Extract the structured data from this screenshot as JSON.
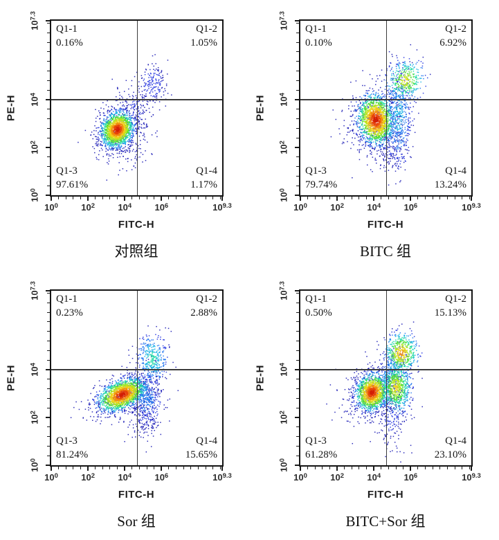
{
  "colors": {
    "background": "#ffffff",
    "axis": "#1a1a1a",
    "quadrant_line": "#3a3a3a",
    "label_text": "#141414",
    "tick_text": "#2e2e2e"
  },
  "chart_data": {
    "type": "scatter",
    "subtype": "flow-cytometry-density-quadrant",
    "xlabel": "FITC-H",
    "ylabel": "PE-H",
    "x_scale": "log10",
    "y_scale": "log10",
    "xlim_log10": [
      0,
      9.3
    ],
    "ylim_log10": [
      0,
      7.3
    ],
    "tick_base": "10",
    "x_tick_exponents": [
      "0",
      "2",
      "4",
      "6",
      "9.3"
    ],
    "y_tick_exponents": [
      "0",
      "2",
      "4",
      "7.3"
    ],
    "quadrant_divider_x_log10": 4.68,
    "quadrant_divider_y_log10": 4.0,
    "grid": "off",
    "legend": "none",
    "colormap": [
      "#1616b4",
      "#2334e0",
      "#1f74f0",
      "#19b4e6",
      "#1ed9a4",
      "#51e034",
      "#b4e61e",
      "#f0d014",
      "#f28c10",
      "#e8450a",
      "#d41f06"
    ],
    "panels": [
      {
        "title": "对照组",
        "quadrants": {
          "q1": {
            "label": "Q1-1",
            "value": "0.16%"
          },
          "q2": {
            "label": "Q1-2",
            "value": "1.05%"
          },
          "q3": {
            "label": "Q1-3",
            "value": "97.61%"
          },
          "q4": {
            "label": "Q1-4",
            "value": "1.17%"
          }
        },
        "clusters": [
          {
            "cx": 3.6,
            "cy": 2.75,
            "sx": 0.42,
            "sy": 0.33,
            "rot": 22,
            "n": 1600,
            "hot": 1.0
          },
          {
            "cx": 3.7,
            "cy": 2.7,
            "sx": 0.75,
            "sy": 0.55,
            "rot": 18,
            "n": 380,
            "hot": 0.15
          },
          {
            "cx": 4.6,
            "cy": 3.6,
            "sx": 0.45,
            "sy": 0.6,
            "rot": 35,
            "n": 130,
            "hot": 0.12
          },
          {
            "cx": 5.5,
            "cy": 4.7,
            "sx": 0.4,
            "sy": 0.45,
            "rot": 20,
            "n": 180,
            "hot": 0.16
          },
          {
            "cx": 4.5,
            "cy": 1.8,
            "sx": 0.55,
            "sy": 0.5,
            "rot": 0,
            "n": 60,
            "hot": 0.08
          }
        ]
      },
      {
        "title": "BITC 组",
        "quadrants": {
          "q1": {
            "label": "Q1-1",
            "value": "0.10%"
          },
          "q2": {
            "label": "Q1-2",
            "value": "6.92%"
          },
          "q3": {
            "label": "Q1-3",
            "value": "79.74%"
          },
          "q4": {
            "label": "Q1-4",
            "value": "13.24%"
          }
        },
        "clusters": [
          {
            "cx": 4.1,
            "cy": 3.15,
            "sx": 0.45,
            "sy": 0.5,
            "rot": 28,
            "n": 1600,
            "hot": 1.0
          },
          {
            "cx": 4.1,
            "cy": 3.0,
            "sx": 0.8,
            "sy": 0.8,
            "rot": 20,
            "n": 420,
            "hot": 0.15
          },
          {
            "cx": 5.35,
            "cy": 3.3,
            "sx": 0.35,
            "sy": 1.0,
            "rot": 0,
            "n": 480,
            "hot": 0.35
          },
          {
            "cx": 5.7,
            "cy": 4.8,
            "sx": 0.5,
            "sy": 0.4,
            "rot": 15,
            "n": 380,
            "hot": 0.7
          },
          {
            "cx": 4.9,
            "cy": 1.8,
            "sx": 0.45,
            "sy": 0.5,
            "rot": 0,
            "n": 110,
            "hot": 0.1
          }
        ]
      },
      {
        "title": "Sor 组",
        "quadrants": {
          "q1": {
            "label": "Q1-1",
            "value": "0.23%"
          },
          "q2": {
            "label": "Q1-2",
            "value": "2.88%"
          },
          "q3": {
            "label": "Q1-3",
            "value": "81.24%"
          },
          "q4": {
            "label": "Q1-4",
            "value": "15.65%"
          }
        },
        "clusters": [
          {
            "cx": 3.85,
            "cy": 2.95,
            "sx": 0.62,
            "sy": 0.28,
            "rot": 16,
            "n": 1600,
            "hot": 1.0
          },
          {
            "cx": 3.95,
            "cy": 2.9,
            "sx": 0.95,
            "sy": 0.45,
            "rot": 14,
            "n": 420,
            "hot": 0.15
          },
          {
            "cx": 5.2,
            "cy": 2.8,
            "sx": 0.38,
            "sy": 0.55,
            "rot": 0,
            "n": 320,
            "hot": 0.28
          },
          {
            "cx": 5.5,
            "cy": 4.45,
            "sx": 0.4,
            "sy": 0.5,
            "rot": 10,
            "n": 380,
            "hot": 0.45
          },
          {
            "cx": 5.1,
            "cy": 1.9,
            "sx": 0.45,
            "sy": 0.45,
            "rot": 0,
            "n": 130,
            "hot": 0.1
          }
        ]
      },
      {
        "title": "BITC+Sor 组",
        "quadrants": {
          "q1": {
            "label": "Q1-1",
            "value": "0.50%"
          },
          "q2": {
            "label": "Q1-2",
            "value": "15.13%"
          },
          "q3": {
            "label": "Q1-3",
            "value": "61.28%"
          },
          "q4": {
            "label": "Q1-4",
            "value": "23.10%"
          }
        },
        "clusters": [
          {
            "cx": 3.9,
            "cy": 3.05,
            "sx": 0.42,
            "sy": 0.35,
            "rot": 20,
            "n": 1300,
            "hot": 1.0
          },
          {
            "cx": 3.95,
            "cy": 2.95,
            "sx": 0.8,
            "sy": 0.6,
            "rot": 12,
            "n": 430,
            "hot": 0.15
          },
          {
            "cx": 5.2,
            "cy": 3.25,
            "sx": 0.42,
            "sy": 0.52,
            "rot": 0,
            "n": 720,
            "hot": 0.7
          },
          {
            "cx": 5.5,
            "cy": 4.7,
            "sx": 0.42,
            "sy": 0.4,
            "rot": 0,
            "n": 500,
            "hot": 0.8
          },
          {
            "cx": 5.1,
            "cy": 4.0,
            "sx": 0.45,
            "sy": 0.5,
            "rot": 0,
            "n": 190,
            "hot": 0.25
          },
          {
            "cx": 4.95,
            "cy": 1.85,
            "sx": 0.5,
            "sy": 0.55,
            "rot": 0,
            "n": 140,
            "hot": 0.12
          }
        ]
      }
    ]
  }
}
